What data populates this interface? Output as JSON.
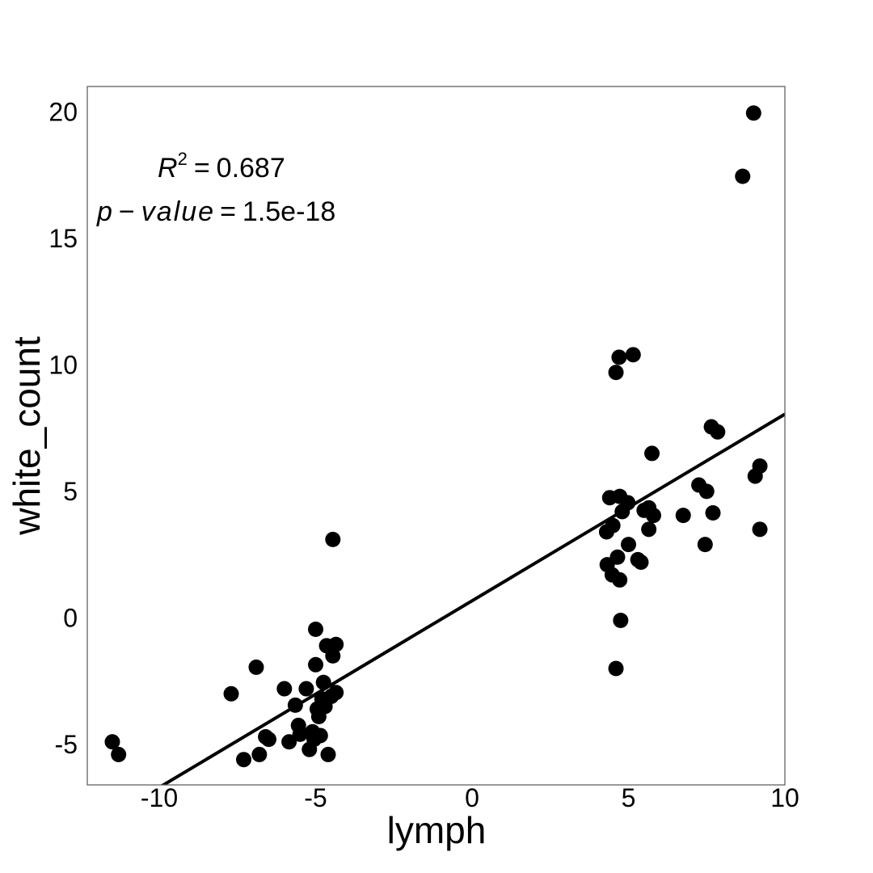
{
  "chart_data": {
    "type": "scatter",
    "xlabel": "lymph",
    "ylabel": "white_count",
    "xlim": [
      -12.3,
      10
    ],
    "ylim": [
      -6.6,
      21
    ],
    "x_ticks": [
      -10,
      -5,
      0,
      5,
      10
    ],
    "y_ticks": [
      -5,
      0,
      5,
      10,
      15,
      20
    ],
    "x_tick_labels": [
      "-10",
      "-5",
      "0",
      "5",
      "10"
    ],
    "y_tick_labels": [
      "-5",
      "0",
      "5",
      "10",
      "15",
      "20"
    ],
    "grid": false,
    "marker_color": "#000000",
    "line_color": "#000000",
    "annotations": {
      "r2_symbol": "R",
      "r2_superscript": "2",
      "r2_value": "0.687",
      "equals": "=",
      "pvalue_name": "p",
      "pvalue_minus": "−",
      "pvalue_word": "value",
      "pvalue_value": "1.5e-18"
    },
    "regression_line": {
      "x": [
        -10.0,
        10.0
      ],
      "y": [
        -6.7,
        8.05
      ]
    },
    "points": [
      {
        "x": -11.5,
        "y": -4.9
      },
      {
        "x": -11.3,
        "y": -5.4
      },
      {
        "x": -7.7,
        "y": -3.0
      },
      {
        "x": -7.3,
        "y": -5.6
      },
      {
        "x": -6.9,
        "y": -1.95
      },
      {
        "x": -6.8,
        "y": -5.4
      },
      {
        "x": -6.6,
        "y": -4.7
      },
      {
        "x": -6.5,
        "y": -4.8
      },
      {
        "x": -6.0,
        "y": -2.8
      },
      {
        "x": -5.85,
        "y": -4.9
      },
      {
        "x": -5.65,
        "y": -3.45
      },
      {
        "x": -5.55,
        "y": -4.25
      },
      {
        "x": -5.5,
        "y": -4.6
      },
      {
        "x": -5.3,
        "y": -2.8
      },
      {
        "x": -5.2,
        "y": -5.2
      },
      {
        "x": -5.1,
        "y": -4.5
      },
      {
        "x": -5.05,
        "y": -4.8
      },
      {
        "x": -5.0,
        "y": -0.45
      },
      {
        "x": -5.0,
        "y": -1.85
      },
      {
        "x": -4.95,
        "y": -3.6
      },
      {
        "x": -4.9,
        "y": -3.9
      },
      {
        "x": -4.85,
        "y": -4.65
      },
      {
        "x": -4.8,
        "y": -3.2
      },
      {
        "x": -4.75,
        "y": -2.55
      },
      {
        "x": -4.7,
        "y": -3.5
      },
      {
        "x": -4.65,
        "y": -1.1
      },
      {
        "x": -4.6,
        "y": -5.4
      },
      {
        "x": -4.5,
        "y": -3.1
      },
      {
        "x": -4.45,
        "y": -1.5
      },
      {
        "x": -4.45,
        "y": 3.1
      },
      {
        "x": -4.35,
        "y": -1.05
      },
      {
        "x": -4.35,
        "y": -2.95
      },
      {
        "x": 4.3,
        "y": 3.4
      },
      {
        "x": 4.32,
        "y": 2.1
      },
      {
        "x": 4.4,
        "y": 4.75
      },
      {
        "x": 4.48,
        "y": 1.7
      },
      {
        "x": 4.5,
        "y": 3.65
      },
      {
        "x": 4.6,
        "y": 9.7
      },
      {
        "x": 4.6,
        "y": -2.0
      },
      {
        "x": 4.65,
        "y": 2.4
      },
      {
        "x": 4.7,
        "y": 10.3
      },
      {
        "x": 4.72,
        "y": 4.8
      },
      {
        "x": 4.72,
        "y": 1.5
      },
      {
        "x": 4.75,
        "y": -0.1
      },
      {
        "x": 4.8,
        "y": 4.2
      },
      {
        "x": 4.98,
        "y": 4.55
      },
      {
        "x": 5.0,
        "y": 2.9
      },
      {
        "x": 5.15,
        "y": 10.4
      },
      {
        "x": 5.3,
        "y": 2.3
      },
      {
        "x": 5.4,
        "y": 2.2
      },
      {
        "x": 5.5,
        "y": 4.25
      },
      {
        "x": 5.65,
        "y": 4.35
      },
      {
        "x": 5.65,
        "y": 3.5
      },
      {
        "x": 5.75,
        "y": 6.5
      },
      {
        "x": 5.8,
        "y": 4.05
      },
      {
        "x": 6.75,
        "y": 4.05
      },
      {
        "x": 7.25,
        "y": 5.25
      },
      {
        "x": 7.45,
        "y": 2.9
      },
      {
        "x": 7.5,
        "y": 5.0
      },
      {
        "x": 7.65,
        "y": 7.55
      },
      {
        "x": 7.7,
        "y": 4.15
      },
      {
        "x": 7.85,
        "y": 7.35
      },
      {
        "x": 8.65,
        "y": 17.45
      },
      {
        "x": 9.0,
        "y": 19.95
      },
      {
        "x": 9.05,
        "y": 5.6
      },
      {
        "x": 9.2,
        "y": 6.0
      },
      {
        "x": 9.2,
        "y": 3.5
      }
    ]
  }
}
